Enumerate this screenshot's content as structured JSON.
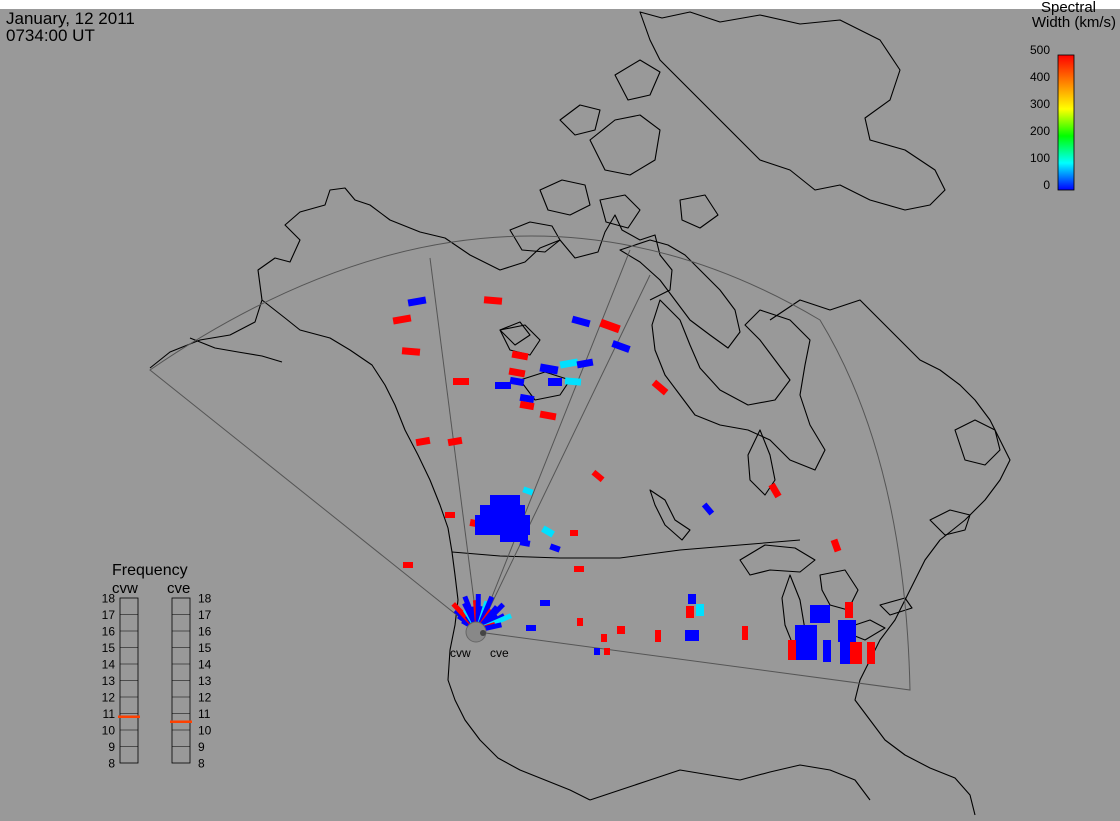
{
  "header": {
    "date": "January, 12 2011",
    "time": "0734:00 UT"
  },
  "colorbar": {
    "title_line1": "Spectral",
    "title_line2": "Width (km/s)",
    "ticks": [
      "500",
      "400",
      "300",
      "200",
      "100",
      "0"
    ],
    "min": 0,
    "max": 500,
    "colors": [
      "#0000ff",
      "#00ffff",
      "#00ff00",
      "#ffff00",
      "#ff8000",
      "#ff0000"
    ]
  },
  "frequency_panel": {
    "title": "Frequency",
    "radars": [
      {
        "name": "cvw",
        "value": 10.8
      },
      {
        "name": "cve",
        "value": 10.5
      }
    ],
    "ticks": [
      "18",
      "17",
      "16",
      "15",
      "14",
      "13",
      "12",
      "11",
      "10",
      "9",
      "8"
    ],
    "marker_color": "#ff4000"
  },
  "radar_sites": [
    {
      "name": "cvw"
    },
    {
      "name": "cve"
    }
  ],
  "colors": {
    "background": "#999999",
    "coast": "#000000",
    "fov": "#555555",
    "high": "#ff0000",
    "low": "#0000ff",
    "mid": "#00e0ff"
  }
}
